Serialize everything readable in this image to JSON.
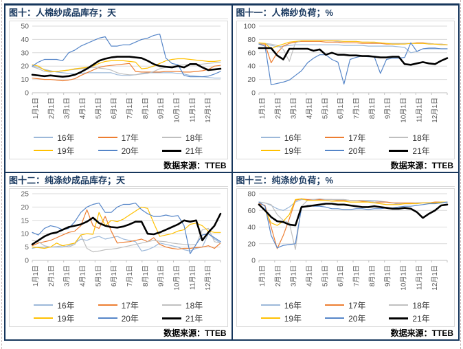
{
  "source_label": "数据来源：TTEB",
  "months": [
    "1月1日",
    "2月1日",
    "3月1日",
    "4月1日",
    "5月1日",
    "6月1日",
    "7月1日",
    "8月1日",
    "9月1日",
    "10月1日",
    "11月1日",
    "12月1日"
  ],
  "axis_color": "#595959",
  "grid_color": "#d9d9d9",
  "axis_line_color": "#bfbfbf",
  "title_color": "#17375e",
  "chart_data": [
    {
      "type": "line",
      "title": "图十：人棉纱成品库存；天",
      "ylabel": "天",
      "ylim": [
        0,
        50
      ],
      "ystep": 10,
      "legend_position": "bottom",
      "grid": true,
      "series": [
        {
          "name": "16年",
          "color": "#9cb8d9",
          "width": 1.2,
          "values": [
            20,
            19,
            17.5,
            16.5,
            15.5,
            15,
            14.5,
            14,
            14.5,
            15,
            15,
            15,
            15,
            15,
            13.5,
            13,
            13,
            13.5,
            14.5,
            15,
            15,
            15,
            15,
            15,
            14.5,
            14,
            13,
            12.5,
            12,
            11.5,
            11,
            11
          ]
        },
        {
          "name": "17年",
          "color": "#ed7d31",
          "width": 1.2,
          "values": [
            11,
            10.5,
            10,
            10,
            9.5,
            9,
            9.5,
            10.5,
            13,
            15,
            17,
            19,
            20,
            20.5,
            21,
            21.5,
            22,
            16,
            15.5,
            15.5,
            15.5,
            15.5,
            16,
            16,
            16,
            15.5,
            15.5,
            16,
            16.5,
            17.5,
            20,
            20.5
          ]
        },
        {
          "name": "18年",
          "color": "#bfbfbf",
          "width": 1.2,
          "values": [
            19.5,
            18,
            16,
            15.5,
            16,
            16.5,
            17,
            17.5,
            18,
            18.5,
            19,
            18.5,
            18,
            17,
            15,
            14,
            13.5,
            13.5,
            14,
            14.5,
            16,
            18,
            19,
            20,
            20.5,
            21,
            21,
            21,
            21.5,
            22,
            22.5,
            23
          ]
        },
        {
          "name": "19年",
          "color": "#ffc000",
          "width": 1.2,
          "values": [
            21,
            20,
            17,
            16,
            16,
            16.5,
            17,
            18,
            18.5,
            19,
            20,
            22,
            23.5,
            24,
            24,
            24,
            23.5,
            23,
            18,
            18.5,
            20,
            22,
            24,
            25,
            25.5,
            25.5,
            25,
            24.5,
            24,
            23.5,
            23.5,
            24
          ]
        },
        {
          "name": "20年",
          "color": "#5585c8",
          "width": 1.2,
          "values": [
            20,
            23,
            25,
            25,
            25,
            24,
            30,
            32,
            35,
            37,
            39,
            41,
            42,
            35,
            35,
            36,
            36,
            38,
            40,
            41,
            43,
            44,
            26,
            22,
            21,
            13,
            12,
            12,
            12,
            12.5,
            14,
            16
          ]
        },
        {
          "name": "21年",
          "color": "#000000",
          "width": 2.6,
          "values": [
            13.5,
            13,
            12.5,
            13,
            12.5,
            12,
            12.5,
            13.5,
            15.5,
            18,
            21,
            24,
            25.5,
            26.5,
            27,
            27,
            27,
            26.5,
            26,
            24,
            21.5,
            20,
            19.5,
            19,
            20,
            19,
            21.5,
            21.5,
            19,
            17,
            17.5,
            18
          ]
        }
      ]
    },
    {
      "type": "line",
      "title": "图十一：人棉纱负荷；%",
      "ylabel": "%",
      "ylim": [
        0,
        100
      ],
      "ystep": 20,
      "legend_position": "bottom",
      "grid": true,
      "series": [
        {
          "name": "16年",
          "color": "#9cb8d9",
          "width": 1.2,
          "values": [
            74,
            73,
            71,
            69,
            70,
            71,
            72,
            72,
            72,
            72,
            72,
            72,
            72,
            72,
            71,
            71,
            71,
            71,
            70,
            70,
            70,
            70,
            70,
            69,
            68,
            60,
            62,
            66,
            66,
            66,
            66,
            66
          ]
        },
        {
          "name": "17年",
          "color": "#ed7d31",
          "width": 1.2,
          "values": [
            73,
            73,
            45,
            60,
            70,
            74,
            76,
            77,
            77,
            77,
            77,
            76,
            76,
            76,
            75,
            75,
            75,
            74,
            74,
            74,
            74,
            73,
            73,
            73,
            74,
            74,
            75,
            75,
            74,
            73,
            73,
            72
          ]
        },
        {
          "name": "18年",
          "color": "#bfbfbf",
          "width": 1.2,
          "values": [
            74,
            74,
            73,
            71,
            65,
            47,
            75,
            78,
            78,
            78,
            78,
            78,
            78,
            77,
            77,
            77,
            77,
            76,
            76,
            75,
            75,
            74,
            74,
            74,
            74,
            74,
            74,
            74,
            74,
            73,
            73,
            72
          ]
        },
        {
          "name": "19年",
          "color": "#ffc000",
          "width": 1.2,
          "values": [
            75,
            74,
            66,
            70,
            73,
            76,
            77,
            78,
            78,
            78,
            78,
            78,
            78,
            78,
            77,
            77,
            77,
            76,
            76,
            76,
            75,
            74,
            73,
            73,
            73,
            74,
            74,
            74,
            73,
            73,
            72,
            72
          ]
        },
        {
          "name": "20年",
          "color": "#5585c8",
          "width": 1.2,
          "values": [
            73,
            70,
            12,
            14,
            16,
            19,
            26,
            33,
            45,
            52,
            57,
            57,
            50,
            46,
            13,
            50,
            53,
            55,
            54,
            54,
            29,
            50,
            52,
            52,
            53,
            75,
            62,
            66,
            67,
            67,
            66,
            66
          ]
        },
        {
          "name": "21年",
          "color": "#000000",
          "width": 2.6,
          "values": [
            67,
            67,
            67,
            56,
            50,
            66,
            66,
            66,
            66,
            63,
            65,
            57,
            60,
            57,
            57,
            56,
            56,
            55,
            55,
            54,
            53,
            53,
            54,
            54,
            43,
            42,
            44,
            46,
            44,
            43,
            48,
            52
          ]
        }
      ]
    },
    {
      "type": "line",
      "title": "图十二：纯涤纱成品库存；天",
      "ylabel": "天",
      "ylim": [
        0,
        25
      ],
      "ystep": 5,
      "legend_position": "bottom",
      "grid": true,
      "series": [
        {
          "name": "16年",
          "color": "#9cb8d9",
          "width": 1.2,
          "values": [
            4.5,
            5,
            5,
            5,
            5,
            5,
            5.5,
            6.5,
            8,
            7.5,
            8.5,
            9,
            8,
            8.5,
            9,
            8,
            7.5,
            7,
            3.5,
            4,
            5,
            6.5,
            6,
            5.5,
            5,
            4,
            3.5,
            4.5,
            5,
            10,
            8,
            6.5
          ]
        },
        {
          "name": "17年",
          "color": "#ed7d31",
          "width": 1.2,
          "values": [
            5.5,
            6.5,
            7,
            7.5,
            8.5,
            9.5,
            10.5,
            11,
            13,
            19,
            13,
            12,
            16.5,
            11,
            6.5,
            6.8,
            7,
            7.5,
            8,
            7,
            8.5,
            6,
            5,
            4.5,
            4.2,
            4.5,
            4.5,
            4.8,
            5,
            5.5,
            4.5,
            6.5
          ]
        },
        {
          "name": "18年",
          "color": "#bfbfbf",
          "width": 1.2,
          "values": [
            7.5,
            7,
            5.5,
            5,
            5.2,
            5.5,
            5,
            6,
            9.5,
            4.5,
            3.2,
            3.5,
            4,
            4.2,
            4.5,
            5,
            5.5,
            6,
            6.5,
            7,
            7.5,
            7.2,
            7,
            6.5,
            6.2,
            6,
            5.8,
            6,
            11.5,
            12,
            7,
            6.5
          ]
        },
        {
          "name": "19年",
          "color": "#ffc000",
          "width": 1.2,
          "values": [
            5,
            4.8,
            4.5,
            5,
            6.5,
            5.5,
            6,
            6.5,
            9.5,
            10,
            9.8,
            18,
            13,
            15,
            14.5,
            15.5,
            17,
            18.5,
            20,
            19.5,
            14,
            9,
            9.5,
            10,
            11,
            11.5,
            13.5,
            14,
            13,
            11,
            10.5,
            10.5
          ]
        },
        {
          "name": "20年",
          "color": "#5585c8",
          "width": 1.2,
          "values": [
            10.5,
            9.5,
            12,
            13,
            12.5,
            11.5,
            12,
            14.5,
            18,
            20,
            21,
            21.5,
            18,
            18,
            20,
            21,
            21,
            21.5,
            19,
            17.5,
            16.5,
            16.5,
            17,
            16.5,
            16.8,
            13,
            2.5,
            6,
            9.5,
            10,
            8.5,
            7
          ]
        },
        {
          "name": "21年",
          "color": "#000000",
          "width": 2.6,
          "values": [
            6,
            7.5,
            9,
            10,
            10.5,
            11.5,
            12.5,
            13,
            13.5,
            14.5,
            16,
            14,
            13,
            12.5,
            12.3,
            12.7,
            13.5,
            14.5,
            14.5,
            10,
            9.8,
            10.5,
            11.5,
            12.5,
            13.5,
            15,
            14.5,
            15,
            7.5,
            10.5,
            13,
            17.5
          ]
        }
      ]
    },
    {
      "type": "line",
      "title": "图十三：纯涤纱负荷；%",
      "ylabel": "%",
      "ylim": [
        0,
        80
      ],
      "ystep": 20,
      "legend_position": "bottom",
      "grid": true,
      "series": [
        {
          "name": "16年",
          "color": "#9cb8d9",
          "width": 1.2,
          "values": [
            70,
            69,
            66,
            62,
            60,
            64,
            70,
            73,
            73,
            73,
            73,
            73,
            73,
            73,
            73,
            72,
            72,
            72,
            72,
            72,
            71,
            70,
            69,
            68,
            68,
            68,
            69,
            69,
            69,
            69,
            70,
            70
          ]
        },
        {
          "name": "17年",
          "color": "#ed7d31",
          "width": 1.2,
          "values": [
            68,
            66,
            40,
            14,
            30,
            50,
            72,
            74,
            73,
            73,
            73,
            73,
            73,
            72,
            72,
            72,
            72,
            71,
            71,
            70,
            70,
            70,
            69,
            69,
            69,
            69,
            69,
            69,
            69,
            70,
            70,
            70
          ]
        },
        {
          "name": "18年",
          "color": "#bfbfbf",
          "width": 1.2,
          "values": [
            70,
            69,
            67,
            55,
            48,
            45,
            13,
            65,
            72,
            73,
            74,
            73,
            73,
            73,
            73,
            72,
            72,
            72,
            71,
            70,
            68,
            67,
            67,
            68,
            68,
            68,
            69,
            69,
            69,
            69,
            70,
            70
          ]
        },
        {
          "name": "19年",
          "color": "#ffc000",
          "width": 1.2,
          "values": [
            67,
            60,
            45,
            42,
            47,
            55,
            73,
            74,
            72,
            72,
            72,
            72,
            71,
            71,
            71,
            70,
            70,
            70,
            70,
            69,
            68,
            67,
            67,
            67,
            68,
            68,
            68,
            69,
            69,
            69,
            70,
            70
          ]
        },
        {
          "name": "20年",
          "color": "#5585c8",
          "width": 1.2,
          "values": [
            70,
            65,
            30,
            15,
            18,
            19,
            20,
            63,
            66,
            65,
            65,
            64,
            62,
            62,
            61,
            61,
            62,
            62,
            61,
            62,
            62,
            63,
            63,
            64,
            65,
            65,
            66,
            67,
            68,
            68,
            69,
            70
          ]
        },
        {
          "name": "21年",
          "color": "#000000",
          "width": 2.6,
          "values": [
            67,
            60,
            52,
            47,
            46,
            43,
            42,
            64,
            65,
            66,
            67,
            68,
            68,
            67,
            67,
            66,
            65,
            64,
            64,
            65,
            64,
            63,
            62,
            62,
            63,
            62,
            58,
            51,
            56,
            60,
            66,
            67
          ]
        }
      ]
    }
  ]
}
